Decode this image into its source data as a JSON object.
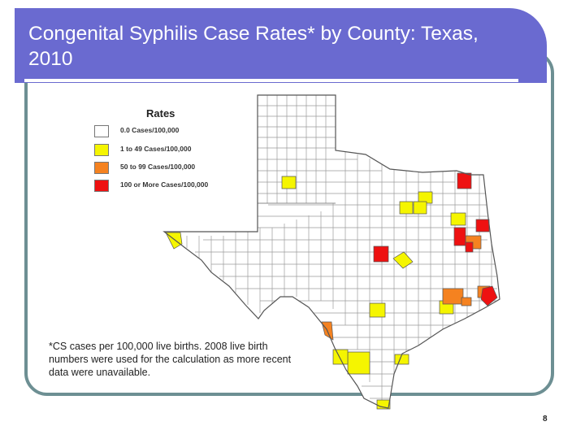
{
  "slide": {
    "title": "Congenital Syphilis Case Rates* by County: Texas, 2010",
    "footnote": "*CS cases per 100,000 live births.  2008 live birth numbers were used for the calculation as more recent data were unavailable.",
    "page_number": "8",
    "title_bar_color": "#6a6ad0",
    "frame_color": "#6d8f93"
  },
  "legend": {
    "title": "Rates",
    "items": [
      {
        "label": "0.0 Cases/100,000",
        "color": "#ffffff"
      },
      {
        "label": "1 to 49 Cases/100,000",
        "color": "#f5f500"
      },
      {
        "label": "50 to  99 Cases/100,000",
        "color": "#f58220"
      },
      {
        "label": "100 or More Cases/100,000",
        "color": "#ee1111"
      }
    ]
  },
  "map": {
    "region": "Texas",
    "year": "2010",
    "highlighted_counties": {
      "1 to 49": 13,
      "50 to 99": 5,
      "100 or more": 6
    }
  }
}
